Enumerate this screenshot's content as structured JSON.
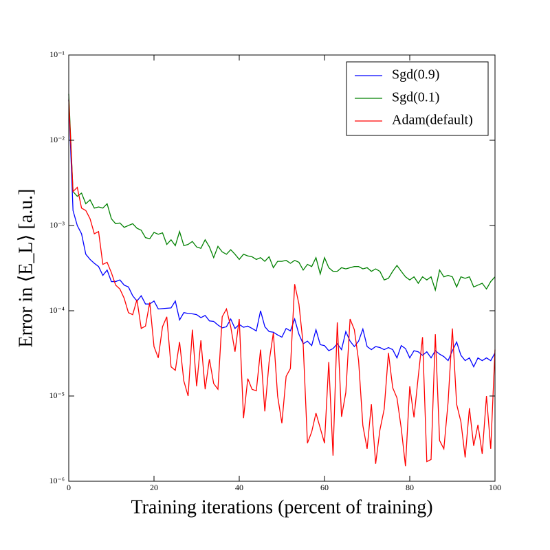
{
  "chart_data": {
    "type": "line",
    "xlabel": "Training iterations (percent of training)",
    "ylabel": "Error in ⟨E_L⟩ [a.u.]",
    "log_y": true,
    "legend": "upper right",
    "xlim": [
      0,
      100
    ],
    "xticks": [
      0,
      20,
      40,
      60,
      80,
      100
    ],
    "ylim": [
      1e-06,
      0.1
    ],
    "yticks": [
      {
        "value": 1e-06,
        "label": "10⁻⁶"
      },
      {
        "value": 1e-05,
        "label": "10⁻⁵"
      },
      {
        "value": 0.0001,
        "label": "10⁻⁴"
      },
      {
        "value": 0.001,
        "label": "10⁻³"
      },
      {
        "value": 0.01,
        "label": "10⁻²"
      },
      {
        "value": 0.1,
        "label": "10⁻¹"
      }
    ],
    "x": [
      0,
      1,
      2,
      3,
      4,
      5,
      6,
      7,
      8,
      9,
      10,
      11,
      12,
      13,
      14,
      15,
      16,
      17,
      18,
      19,
      20,
      21,
      22,
      23,
      24,
      25,
      26,
      27,
      28,
      29,
      30,
      31,
      32,
      33,
      34,
      35,
      36,
      37,
      38,
      39,
      40,
      41,
      42,
      43,
      44,
      45,
      46,
      47,
      48,
      49,
      50,
      51,
      52,
      53,
      54,
      55,
      56,
      57,
      58,
      59,
      60,
      61,
      62,
      63,
      64,
      65,
      66,
      67,
      68,
      69,
      70,
      71,
      72,
      73,
      74,
      75,
      76,
      77,
      78,
      79,
      80,
      81,
      82,
      83,
      84,
      85,
      86,
      87,
      88,
      89,
      90,
      91,
      92,
      93,
      94,
      95,
      96,
      97,
      98,
      99,
      100
    ],
    "series": [
      {
        "name": "Sgd(0.9)",
        "color": "#0000ff",
        "values": [
          0.03,
          0.0015,
          0.001,
          0.0008,
          0.00046,
          0.0004,
          0.00036,
          0.00033,
          0.00026,
          0.0003,
          0.00022,
          0.00022,
          0.00023,
          0.0002,
          0.00019,
          0.00015,
          0.00013,
          0.00015,
          0.00012,
          0.00012,
          0.00013,
          0.000105,
          0.000106,
          0.000107,
          0.000108,
          0.00013,
          7.8e-05,
          9.5e-05,
          9.3e-05,
          9.2e-05,
          9e-05,
          8.3e-05,
          8.8e-05,
          7.6e-05,
          7.5e-05,
          6.8e-05,
          6.3e-05,
          6.5e-05,
          8e-05,
          6.2e-05,
          6.9e-05,
          6.4e-05,
          6.6e-05,
          6.2e-05,
          5.8e-05,
          0.0001,
          6.5e-05,
          5.7e-05,
          5.6e-05,
          5.2e-05,
          4.9e-05,
          6.2e-05,
          5.8e-05,
          8e-05,
          5.3e-05,
          4.1e-05,
          4.4e-05,
          3.9e-05,
          6e-05,
          4e-05,
          3.9e-05,
          3.4e-05,
          3.6e-05,
          4.1e-05,
          3.5e-05,
          5.7e-05,
          4.4e-05,
          3.8e-05,
          4.4e-05,
          6.1e-05,
          3.8e-05,
          3.5e-05,
          3.8e-05,
          3.7e-05,
          3.5e-05,
          3.7e-05,
          3.5e-05,
          2.8e-05,
          3.9e-05,
          3.6e-05,
          2.8e-05,
          3.4e-05,
          3.3e-05,
          3e-05,
          3.3e-05,
          2.8e-05,
          3.4e-05,
          3.1e-05,
          2.9e-05,
          2.6e-05,
          3.4e-05,
          4.3e-05,
          3e-05,
          2.6e-05,
          2.8e-05,
          2.2e-05,
          2.8e-05,
          2.6e-05,
          2.8e-05,
          2.6e-05,
          3.2e-05
        ]
      },
      {
        "name": "Sgd(0.1)",
        "color": "#008000",
        "values": [
          0.035,
          0.0025,
          0.0022,
          0.0024,
          0.0018,
          0.002,
          0.0016,
          0.00165,
          0.0016,
          0.0018,
          0.0012,
          0.00105,
          0.00107,
          0.00095,
          0.001,
          0.00105,
          0.00093,
          0.00088,
          0.00072,
          0.0007,
          0.00083,
          0.00079,
          0.00082,
          0.0006,
          0.00068,
          0.00058,
          0.00085,
          0.00058,
          0.0006,
          0.00065,
          0.00056,
          0.00054,
          0.00068,
          0.00056,
          0.00042,
          0.00057,
          0.00049,
          0.00046,
          0.00052,
          0.00046,
          0.0004,
          0.00046,
          0.00044,
          0.00043,
          0.0004,
          0.00042,
          0.00038,
          0.00043,
          0.00032,
          0.00038,
          0.00038,
          0.00039,
          0.00036,
          0.00039,
          0.00037,
          0.0003,
          0.00035,
          0.00033,
          0.00042,
          0.00027,
          0.00042,
          0.00032,
          0.00029,
          0.00029,
          0.00032,
          0.00031,
          0.00032,
          0.00033,
          0.00033,
          0.00031,
          0.00032,
          0.00029,
          0.00031,
          0.00029,
          0.00023,
          0.00024,
          0.00029,
          0.00034,
          0.00029,
          0.00025,
          0.00023,
          0.00025,
          0.00021,
          0.00025,
          0.00023,
          0.00025,
          0.000175,
          0.0003,
          0.00025,
          0.00026,
          0.00025,
          0.00019,
          0.00025,
          0.00024,
          0.00025,
          0.00019,
          0.0002,
          0.00021,
          0.00018,
          0.00022,
          0.00025
        ]
      },
      {
        "name": "Adam(default)",
        "color": "#ff0000",
        "values": [
          0.03,
          0.0025,
          0.0028,
          0.0016,
          0.0015,
          0.0012,
          0.0008,
          0.00085,
          0.00035,
          0.00037,
          0.00028,
          0.0002,
          0.00018,
          0.00014,
          9.5e-05,
          9e-05,
          0.000135,
          6.2e-05,
          6.6e-05,
          0.000125,
          3.8e-05,
          2.8e-05,
          6.5e-05,
          8.5e-05,
          2.2e-05,
          2e-05,
          4.3e-05,
          1.5e-05,
          1e-05,
          6e-05,
          1.3e-05,
          4.5e-05,
          1.2e-05,
          2.7e-05,
          1.4e-05,
          1.2e-05,
          8.5e-05,
          0.000105,
          6.5e-05,
          3.3e-05,
          8e-05,
          5.5e-06,
          1.6e-05,
          1.2e-05,
          1.15e-05,
          3.5e-05,
          6.6e-06,
          2.5e-05,
          5.5e-05,
          1e-05,
          4.8e-06,
          1.7e-05,
          2.1e-05,
          0.000205,
          0.00012,
          4e-05,
          2.8e-06,
          3.8e-06,
          6.3e-06,
          4.2e-06,
          2.8e-06,
          2.5e-05,
          2e-06,
          7.3e-05,
          5.7e-06,
          1.1e-05,
          8e-05,
          6e-05,
          2.6e-05,
          4.5e-06,
          2.4e-06,
          8e-06,
          1.6e-06,
          4e-06,
          7e-06,
          3.2e-05,
          1.25e-05,
          9.5e-06,
          4.2e-06,
          1.5e-06,
          1.3e-05,
          5.6e-06,
          1.7e-05,
          4.9e-05,
          1.7e-06,
          1.8e-06,
          5.3e-05,
          3e-06,
          2.4e-06,
          8.5e-06,
          6.2e-05,
          8e-06,
          5e-06,
          1.9e-06,
          7.2e-06,
          2.6e-06,
          4.6e-06,
          2.1e-06,
          1e-05,
          2.4e-06,
          3.5e-05
        ]
      }
    ]
  }
}
